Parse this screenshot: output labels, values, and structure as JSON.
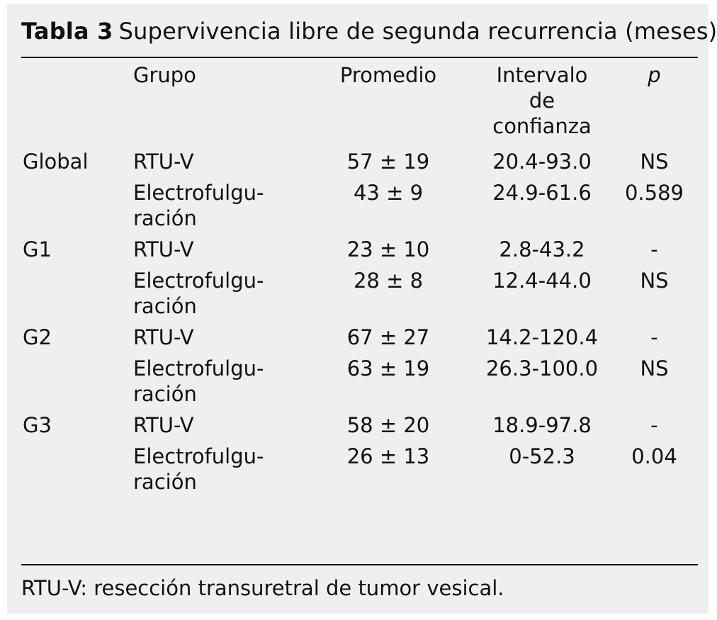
{
  "table": {
    "label": "Tabla 3",
    "title": "Supervivencia libre de segunda recurrencia (meses)",
    "headers": {
      "group": "Grupo",
      "average": "Promedio",
      "interval_line1": "Intervalo",
      "interval_line2": "de",
      "interval_line3": "confianza",
      "p": "p"
    },
    "rows": [
      {
        "global": "Global",
        "group": "RTU-V",
        "group_cont": "",
        "average": "57 ± 19",
        "interval": "20.4-93.0",
        "p": "NS"
      },
      {
        "global": "",
        "group": "Electrofulgu-",
        "group_cont": "ración",
        "average": "43 ± 9",
        "interval": "24.9-61.6",
        "p": "0.589"
      },
      {
        "global": "G1",
        "group": "RTU-V",
        "group_cont": "",
        "average": "23 ± 10",
        "interval": "2.8-43.2",
        "p": "-"
      },
      {
        "global": "",
        "group": "Electrofulgu-",
        "group_cont": "ración",
        "average": "28 ± 8",
        "interval": "12.4-44.0",
        "p": "NS"
      },
      {
        "global": "G2",
        "group": "RTU-V",
        "group_cont": "",
        "average": "67 ± 27",
        "interval": "14.2-120.4",
        "p": "-"
      },
      {
        "global": "",
        "group": "Electrofulgu-",
        "group_cont": "ración",
        "average": "63 ± 19",
        "interval": "26.3-100.0",
        "p": "NS"
      },
      {
        "global": "G3",
        "group": "RTU-V",
        "group_cont": "",
        "average": "58 ± 20",
        "interval": "18.9-97.8",
        "p": "-"
      },
      {
        "global": "",
        "group": "Electrofulgu-",
        "group_cont": "ración",
        "average": "26 ± 13",
        "interval": "0-52.3",
        "p": "0.04"
      }
    ],
    "footnote": "RTU-V: resección transuretral de tumor vesical."
  }
}
